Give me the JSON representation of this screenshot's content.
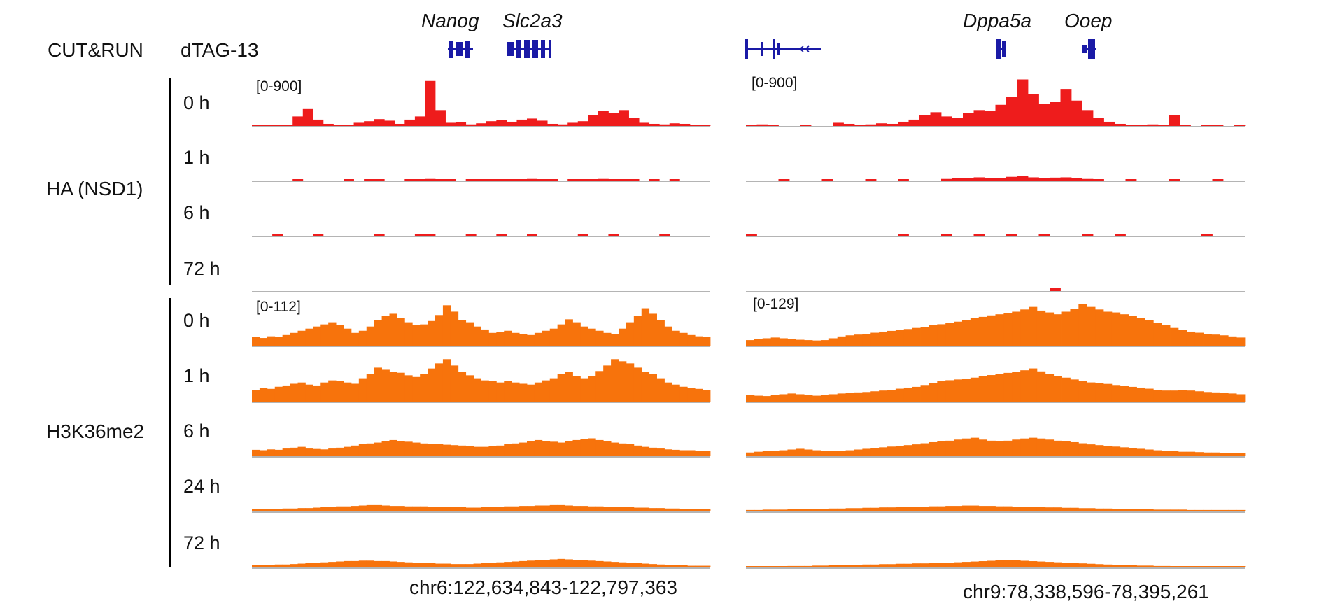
{
  "header": {
    "assay": "CUT&RUN",
    "treatment": "dTAG-13"
  },
  "groups": [
    {
      "name": "HA (NSD1)",
      "timepoints": [
        "0 h",
        "1 h",
        "6 h",
        "72 h"
      ]
    },
    {
      "name": "H3K36me2",
      "timepoints": [
        "0 h",
        "1 h",
        "6 h",
        "24 h",
        "72 h"
      ]
    }
  ],
  "colors": {
    "ha": "#ee1c1c",
    "h3k36me2": "#f7730c",
    "gene": "#1a1aa6",
    "baseline": "#b4b4b4"
  },
  "chart_data": [
    {
      "type": "area",
      "title": "HA (NSD1) CUT&RUN signal, Nanog/Slc2a3 locus",
      "region": "chr6:122,634,843-122,797,363",
      "range_label": "[0-900]",
      "ylim": [
        0,
        900
      ],
      "genes": [
        "Nanog",
        "Slc2a3"
      ],
      "series": [
        {
          "name": "0 h",
          "values": [
            10,
            5,
            12,
            8,
            180,
            320,
            120,
            40,
            10,
            5,
            60,
            90,
            130,
            100,
            40,
            120,
            180,
            850,
            300,
            60,
            70,
            30,
            50,
            90,
            110,
            80,
            120,
            140,
            100,
            40,
            30,
            60,
            90,
            200,
            280,
            250,
            300,
            150,
            60,
            40,
            30,
            50,
            40,
            20,
            10
          ]
        },
        {
          "name": "1 h",
          "values": [
            0,
            0,
            0,
            0,
            15,
            0,
            0,
            0,
            0,
            20,
            0,
            10,
            15,
            0,
            0,
            10,
            5,
            30,
            15,
            5,
            0,
            10,
            20,
            25,
            20,
            15,
            25,
            30,
            10,
            5,
            0,
            15,
            20,
            25,
            30,
            20,
            15,
            10,
            0,
            5,
            0,
            10,
            0,
            0,
            0
          ]
        },
        {
          "name": "6 h",
          "values": [
            0,
            0,
            15,
            0,
            0,
            0,
            10,
            0,
            0,
            0,
            0,
            0,
            15,
            0,
            0,
            0,
            10,
            15,
            0,
            0,
            0,
            10,
            0,
            0,
            15,
            0,
            0,
            10,
            0,
            0,
            0,
            0,
            15,
            0,
            0,
            10,
            0,
            0,
            0,
            0,
            15,
            0,
            0,
            0,
            0
          ]
        },
        {
          "name": "72 h",
          "values": [
            0,
            0,
            0,
            0,
            0,
            0,
            0,
            0,
            0,
            0,
            0,
            0,
            0,
            0,
            0,
            0,
            0,
            0,
            0,
            0,
            0,
            0,
            0,
            0,
            0,
            0,
            0,
            0,
            0,
            0,
            0,
            0,
            0,
            0,
            0,
            0,
            0,
            0,
            0,
            0,
            0,
            0,
            0,
            0,
            0
          ]
        }
      ]
    },
    {
      "type": "area",
      "title": "HA (NSD1) CUT&RUN signal, Dppa5a/Ooep locus",
      "region": "chr9:78,338,596-78,395,261",
      "range_label": "[0-900]",
      "ylim": [
        0,
        900
      ],
      "genes": [
        "Dppa5a",
        "Ooep"
      ],
      "series": [
        {
          "name": "0 h",
          "values": [
            10,
            30,
            5,
            0,
            0,
            10,
            0,
            0,
            60,
            40,
            20,
            30,
            50,
            40,
            80,
            120,
            200,
            260,
            180,
            150,
            250,
            300,
            280,
            400,
            550,
            880,
            600,
            420,
            450,
            700,
            480,
            300,
            150,
            80,
            40,
            20,
            10,
            30,
            20,
            200,
            10,
            0,
            15,
            20,
            0,
            5
          ]
        },
        {
          "name": "1 h",
          "values": [
            0,
            0,
            0,
            15,
            0,
            0,
            0,
            20,
            0,
            0,
            0,
            15,
            0,
            0,
            20,
            0,
            0,
            0,
            30,
            40,
            50,
            60,
            40,
            45,
            70,
            80,
            60,
            50,
            55,
            60,
            40,
            30,
            20,
            0,
            0,
            15,
            0,
            0,
            0,
            10,
            0,
            0,
            0,
            15,
            0,
            0
          ]
        },
        {
          "name": "6 h",
          "values": [
            5,
            0,
            0,
            0,
            0,
            0,
            0,
            0,
            0,
            0,
            0,
            0,
            0,
            0,
            15,
            0,
            0,
            0,
            10,
            0,
            0,
            15,
            0,
            0,
            10,
            0,
            0,
            15,
            0,
            0,
            0,
            15,
            0,
            0,
            10,
            0,
            0,
            0,
            0,
            0,
            0,
            0,
            10,
            0,
            0,
            0
          ]
        },
        {
          "name": "72 h",
          "values": [
            0,
            0,
            0,
            0,
            0,
            0,
            0,
            0,
            0,
            0,
            0,
            0,
            0,
            0,
            0,
            0,
            0,
            0,
            0,
            0,
            0,
            0,
            0,
            0,
            0,
            0,
            0,
            0,
            60,
            0,
            0,
            0,
            0,
            0,
            0,
            0,
            0,
            0,
            0,
            0,
            0,
            0,
            0,
            0,
            0,
            0
          ]
        }
      ]
    },
    {
      "type": "area",
      "title": "H3K36me2 CUT&RUN signal, Nanog/Slc2a3 locus",
      "region": "chr6:122,634,843-122,797,363",
      "range_label": "[0-112]",
      "ylim": [
        0,
        112
      ],
      "series": [
        {
          "name": "0 h",
          "values": [
            20,
            18,
            22,
            20,
            25,
            30,
            35,
            40,
            45,
            50,
            55,
            48,
            40,
            30,
            35,
            45,
            60,
            70,
            75,
            65,
            55,
            48,
            50,
            58,
            72,
            95,
            80,
            60,
            55,
            45,
            38,
            30,
            32,
            35,
            30,
            28,
            25,
            30,
            35,
            40,
            50,
            62,
            55,
            45,
            40,
            35,
            30,
            28,
            40,
            55,
            70,
            88,
            75,
            60,
            45,
            35,
            30,
            25,
            22,
            20
          ]
        },
        {
          "name": "1 h",
          "values": [
            28,
            32,
            30,
            35,
            38,
            42,
            45,
            40,
            38,
            45,
            50,
            48,
            45,
            42,
            55,
            65,
            80,
            75,
            70,
            68,
            62,
            58,
            65,
            78,
            90,
            100,
            85,
            70,
            62,
            55,
            50,
            48,
            45,
            48,
            45,
            42,
            40,
            45,
            50,
            55,
            65,
            70,
            60,
            55,
            60,
            72,
            85,
            100,
            95,
            90,
            80,
            70,
            65,
            55,
            45,
            40,
            35,
            32,
            30,
            28
          ]
        },
        {
          "name": "6 h",
          "values": [
            15,
            14,
            16,
            15,
            18,
            20,
            22,
            18,
            17,
            16,
            18,
            20,
            22,
            25,
            28,
            30,
            32,
            35,
            38,
            36,
            34,
            32,
            30,
            28,
            28,
            27,
            26,
            25,
            24,
            22,
            22,
            24,
            25,
            28,
            30,
            32,
            35,
            38,
            36,
            34,
            32,
            35,
            38,
            40,
            42,
            38,
            35,
            32,
            30,
            28,
            25,
            22,
            20,
            18,
            16,
            15,
            14,
            14,
            13,
            12
          ]
        },
        {
          "name": "24 h",
          "values": [
            5,
            5,
            6,
            6,
            7,
            7,
            8,
            8,
            9,
            10,
            11,
            12,
            12,
            13,
            14,
            15,
            15,
            14,
            13,
            13,
            12,
            12,
            12,
            11,
            11,
            10,
            10,
            10,
            9,
            9,
            10,
            10,
            11,
            12,
            12,
            13,
            13,
            14,
            14,
            15,
            15,
            14,
            13,
            13,
            12,
            12,
            11,
            11,
            10,
            10,
            9,
            9,
            8,
            8,
            7,
            7,
            6,
            6,
            5,
            5
          ]
        },
        {
          "name": "72 h",
          "values": [
            5,
            6,
            6,
            7,
            7,
            8,
            9,
            10,
            11,
            12,
            13,
            14,
            15,
            15,
            16,
            16,
            15,
            15,
            14,
            13,
            12,
            11,
            10,
            10,
            9,
            9,
            8,
            8,
            8,
            9,
            10,
            11,
            12,
            13,
            14,
            15,
            16,
            17,
            18,
            19,
            20,
            19,
            18,
            17,
            16,
            15,
            14,
            13,
            12,
            11,
            10,
            9,
            8,
            7,
            6,
            5,
            5,
            4,
            4,
            4
          ]
        }
      ]
    },
    {
      "type": "area",
      "title": "H3K36me2 CUT&RUN signal, Dppa5a/Ooep locus",
      "region": "chr9:78,338,596-78,395,261",
      "range_label": "[0-129]",
      "ylim": [
        0,
        129
      ],
      "series": [
        {
          "name": "0 h",
          "values": [
            15,
            18,
            20,
            22,
            20,
            18,
            16,
            15,
            14,
            15,
            20,
            25,
            28,
            30,
            32,
            35,
            38,
            40,
            42,
            45,
            48,
            50,
            55,
            58,
            62,
            65,
            70,
            75,
            78,
            82,
            85,
            88,
            92,
            98,
            105,
            95,
            90,
            85,
            92,
            100,
            112,
            105,
            98,
            92,
            90,
            85,
            80,
            75,
            70,
            62,
            55,
            48,
            42,
            38,
            35,
            32,
            30,
            28,
            25,
            22
          ]
        },
        {
          "name": "1 h",
          "values": [
            18,
            16,
            15,
            18,
            20,
            22,
            20,
            18,
            16,
            18,
            20,
            22,
            24,
            25,
            26,
            28,
            30,
            32,
            35,
            38,
            40,
            45,
            50,
            55,
            58,
            60,
            62,
            65,
            70,
            72,
            75,
            78,
            80,
            85,
            90,
            82,
            75,
            70,
            65,
            60,
            55,
            52,
            50,
            48,
            45,
            42,
            40,
            38,
            35,
            32,
            30,
            30,
            32,
            30,
            28,
            26,
            25,
            24,
            22,
            20
          ]
        },
        {
          "name": "6 h",
          "values": [
            10,
            12,
            14,
            15,
            16,
            18,
            20,
            18,
            16,
            15,
            14,
            15,
            16,
            18,
            20,
            22,
            24,
            26,
            28,
            30,
            32,
            35,
            38,
            40,
            42,
            45,
            48,
            50,
            45,
            42,
            40,
            42,
            45,
            48,
            50,
            48,
            45,
            42,
            40,
            38,
            35,
            32,
            30,
            28,
            26,
            24,
            22,
            20,
            18,
            16,
            15,
            14,
            12,
            12,
            11,
            10,
            10,
            9,
            8,
            8
          ]
        },
        {
          "name": "24 h",
          "values": [
            4,
            4,
            5,
            5,
            5,
            6,
            6,
            6,
            7,
            7,
            8,
            8,
            9,
            9,
            10,
            10,
            11,
            11,
            12,
            12,
            13,
            13,
            14,
            14,
            15,
            15,
            16,
            16,
            15,
            15,
            14,
            14,
            13,
            13,
            12,
            12,
            11,
            11,
            10,
            10,
            9,
            9,
            8,
            8,
            7,
            7,
            6,
            6,
            6,
            5,
            5,
            5,
            5,
            4,
            4,
            4,
            4,
            4,
            4,
            4
          ]
        },
        {
          "name": "72 h",
          "values": [
            2,
            2,
            3,
            3,
            3,
            4,
            4,
            4,
            5,
            5,
            6,
            6,
            7,
            7,
            8,
            8,
            9,
            9,
            10,
            10,
            11,
            11,
            12,
            12,
            13,
            14,
            15,
            16,
            17,
            18,
            19,
            20,
            19,
            18,
            17,
            16,
            15,
            14,
            13,
            12,
            11,
            10,
            9,
            8,
            7,
            6,
            6,
            5,
            5,
            4,
            4,
            3,
            3,
            3,
            3,
            2,
            2,
            2,
            2,
            2
          ]
        }
      ]
    }
  ]
}
